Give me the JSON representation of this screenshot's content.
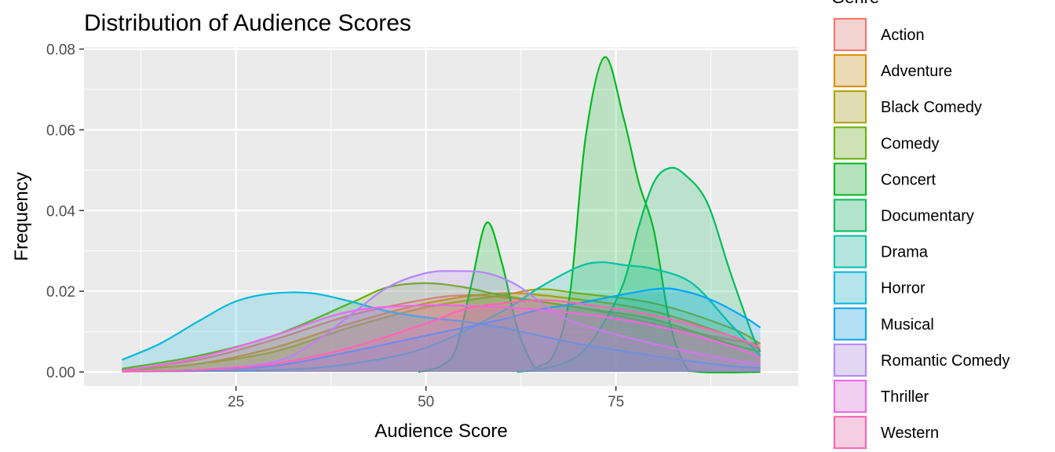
{
  "chart_data": {
    "type": "area",
    "title": "Distribution of Audience Scores",
    "xlabel": "Audience Score",
    "ylabel": "Frequency",
    "xlim": [
      5,
      99
    ],
    "ylim": [
      -0.0035,
      0.0805
    ],
    "x_ticks": [
      25,
      50,
      75
    ],
    "x_tick_labels": [
      "25",
      "50",
      "75"
    ],
    "x_minor": [
      12.5,
      37.5,
      62.5,
      87.5
    ],
    "y_ticks": [
      0,
      0.02,
      0.04,
      0.06,
      0.08
    ],
    "y_tick_labels": [
      "0.00",
      "0.02",
      "0.04",
      "0.06",
      "0.08"
    ],
    "y_minor": [
      0.01,
      0.03,
      0.05,
      0.07
    ],
    "grid": true,
    "legend_title": "Genre",
    "legend_position": "right",
    "series": [
      {
        "name": "Action",
        "color": "#F8766D",
        "points": [
          [
            10,
            0.0005
          ],
          [
            20,
            0.003
          ],
          [
            30,
            0.008
          ],
          [
            40,
            0.014
          ],
          [
            50,
            0.018
          ],
          [
            55,
            0.019
          ],
          [
            60,
            0.0185
          ],
          [
            70,
            0.016
          ],
          [
            80,
            0.012
          ],
          [
            90,
            0.008
          ],
          [
            94,
            0.007
          ]
        ]
      },
      {
        "name": "Adventure",
        "color": "#DB8E00",
        "points": [
          [
            10,
            0.0005
          ],
          [
            20,
            0.002
          ],
          [
            30,
            0.006
          ],
          [
            40,
            0.012
          ],
          [
            50,
            0.017
          ],
          [
            60,
            0.0195
          ],
          [
            70,
            0.018
          ],
          [
            80,
            0.015
          ],
          [
            90,
            0.009
          ],
          [
            94,
            0.0055
          ]
        ]
      },
      {
        "name": "Black Comedy",
        "color": "#AEA200",
        "points": [
          [
            10,
            0.0003
          ],
          [
            20,
            0.002
          ],
          [
            30,
            0.005
          ],
          [
            40,
            0.011
          ],
          [
            50,
            0.016
          ],
          [
            60,
            0.019
          ],
          [
            65,
            0.0205
          ],
          [
            70,
            0.0195
          ],
          [
            80,
            0.017
          ],
          [
            90,
            0.011
          ],
          [
            94,
            0.007
          ]
        ]
      },
      {
        "name": "Comedy",
        "color": "#64B200",
        "points": [
          [
            10,
            0.0008
          ],
          [
            20,
            0.004
          ],
          [
            30,
            0.009
          ],
          [
            40,
            0.017
          ],
          [
            45,
            0.021
          ],
          [
            50,
            0.022
          ],
          [
            55,
            0.021
          ],
          [
            60,
            0.019
          ],
          [
            70,
            0.016
          ],
          [
            80,
            0.013
          ],
          [
            90,
            0.007
          ],
          [
            94,
            0.005
          ]
        ]
      },
      {
        "name": "Concert",
        "color": "#00B81F",
        "points": [
          [
            49,
            0
          ],
          [
            52,
            0.0015
          ],
          [
            54,
            0.006
          ],
          [
            56,
            0.022
          ],
          [
            58,
            0.037
          ],
          [
            60,
            0.027
          ],
          [
            62,
            0.011
          ],
          [
            64,
            0.002
          ],
          [
            65,
            0.0015
          ],
          [
            67,
            0.005
          ],
          [
            69,
            0.02
          ],
          [
            71,
            0.058
          ],
          [
            73.5,
            0.078
          ],
          [
            76,
            0.063
          ],
          [
            78,
            0.047
          ],
          [
            80,
            0.035
          ],
          [
            82,
            0.013
          ],
          [
            84,
            0.002
          ],
          [
            86,
            0
          ],
          [
            94,
            0
          ]
        ]
      },
      {
        "name": "Documentary",
        "color": "#00BD5C",
        "points": [
          [
            62,
            0
          ],
          [
            66,
            0.001
          ],
          [
            70,
            0.004
          ],
          [
            73,
            0.011
          ],
          [
            76,
            0.022
          ],
          [
            78,
            0.036
          ],
          [
            80,
            0.047
          ],
          [
            82,
            0.0505
          ],
          [
            84,
            0.049
          ],
          [
            87,
            0.042
          ],
          [
            90,
            0.025
          ],
          [
            93,
            0.009
          ],
          [
            94,
            0.005
          ]
        ]
      },
      {
        "name": "Drama",
        "color": "#00C1A7",
        "points": [
          [
            10,
            0.0001
          ],
          [
            30,
            0.0005
          ],
          [
            40,
            0.002
          ],
          [
            50,
            0.006
          ],
          [
            60,
            0.015
          ],
          [
            65,
            0.021
          ],
          [
            70,
            0.026
          ],
          [
            73,
            0.0272
          ],
          [
            76,
            0.0265
          ],
          [
            80,
            0.0255
          ],
          [
            85,
            0.022
          ],
          [
            90,
            0.012
          ],
          [
            94,
            0.004
          ]
        ]
      },
      {
        "name": "Horror",
        "color": "#00BADE",
        "points": [
          [
            10,
            0.003
          ],
          [
            15,
            0.007
          ],
          [
            20,
            0.0125
          ],
          [
            25,
            0.0175
          ],
          [
            30,
            0.0195
          ],
          [
            35,
            0.0195
          ],
          [
            40,
            0.0175
          ],
          [
            45,
            0.015
          ],
          [
            50,
            0.0135
          ],
          [
            55,
            0.0125
          ],
          [
            60,
            0.011
          ],
          [
            65,
            0.009
          ],
          [
            70,
            0.007
          ],
          [
            80,
            0.004
          ],
          [
            90,
            0.0015
          ],
          [
            94,
            0.001
          ]
        ]
      },
      {
        "name": "Musical",
        "color": "#00A6FF",
        "points": [
          [
            10,
            0.0001
          ],
          [
            20,
            0.0005
          ],
          [
            30,
            0.0015
          ],
          [
            40,
            0.005
          ],
          [
            50,
            0.009
          ],
          [
            60,
            0.013
          ],
          [
            65,
            0.0155
          ],
          [
            70,
            0.017
          ],
          [
            80,
            0.0205
          ],
          [
            84,
            0.02
          ],
          [
            88,
            0.0175
          ],
          [
            92,
            0.0135
          ],
          [
            94,
            0.011
          ]
        ]
      },
      {
        "name": "Romantic Comedy",
        "color": "#B385FF",
        "points": [
          [
            10,
            0.0001
          ],
          [
            20,
            0.0005
          ],
          [
            30,
            0.0025
          ],
          [
            35,
            0.007
          ],
          [
            40,
            0.014
          ],
          [
            45,
            0.021
          ],
          [
            50,
            0.0245
          ],
          [
            54,
            0.025
          ],
          [
            58,
            0.0245
          ],
          [
            62,
            0.0215
          ],
          [
            66,
            0.016
          ],
          [
            70,
            0.012
          ],
          [
            80,
            0.007
          ],
          [
            90,
            0.003
          ],
          [
            94,
            0.002
          ]
        ]
      },
      {
        "name": "Thriller",
        "color": "#EF67EB",
        "points": [
          [
            10,
            0.0003
          ],
          [
            20,
            0.0035
          ],
          [
            30,
            0.009
          ],
          [
            40,
            0.015
          ],
          [
            50,
            0.0165
          ],
          [
            60,
            0.016
          ],
          [
            70,
            0.0145
          ],
          [
            80,
            0.0115
          ],
          [
            90,
            0.0065
          ],
          [
            94,
            0.0035
          ]
        ]
      },
      {
        "name": "Western",
        "color": "#FF63B6",
        "points": [
          [
            10,
            0.0001
          ],
          [
            20,
            0.0005
          ],
          [
            30,
            0.002
          ],
          [
            40,
            0.006
          ],
          [
            50,
            0.012
          ],
          [
            55,
            0.0155
          ],
          [
            60,
            0.017
          ],
          [
            65,
            0.0178
          ],
          [
            70,
            0.017
          ],
          [
            80,
            0.014
          ],
          [
            90,
            0.009
          ],
          [
            94,
            0.006
          ]
        ]
      }
    ]
  }
}
